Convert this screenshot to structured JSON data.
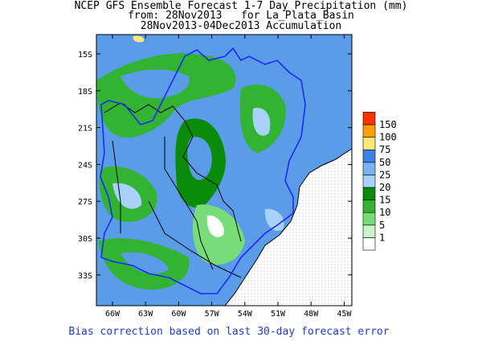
{
  "title": {
    "line1": "NCEP GFS Ensemble Forecast 1-7 Day Precipitation (mm)",
    "line2": "from: 28Nov2013   for La_Plata_Basin",
    "line3": "28Nov2013-04Dec2013 Accumulation"
  },
  "footnote": "Bias correction based on last 30-day forecast error",
  "axes": {
    "lat_labels": [
      "15S",
      "18S",
      "21S",
      "24S",
      "27S",
      "30S",
      "33S"
    ],
    "lon_labels": [
      "66W",
      "63W",
      "60W",
      "57W",
      "54W",
      "51W",
      "48W",
      "45W"
    ]
  },
  "legend": {
    "levels": [
      "1",
      "5",
      "10",
      "15",
      "20",
      "25",
      "50",
      "75",
      "100",
      "150"
    ],
    "colors": [
      "#ffffff",
      "#c8f5c8",
      "#78dc78",
      "#32b432",
      "#0a8c0a",
      "#a8d2fa",
      "#78b4f0",
      "#3c82e6",
      "#ffe678",
      "#ffa000",
      "#ff3200"
    ]
  },
  "colors": {
    "background_blue": "#5a9ce8",
    "boundary_blue": "#1e28ff",
    "footnote_blue": "#1e3cd0"
  }
}
